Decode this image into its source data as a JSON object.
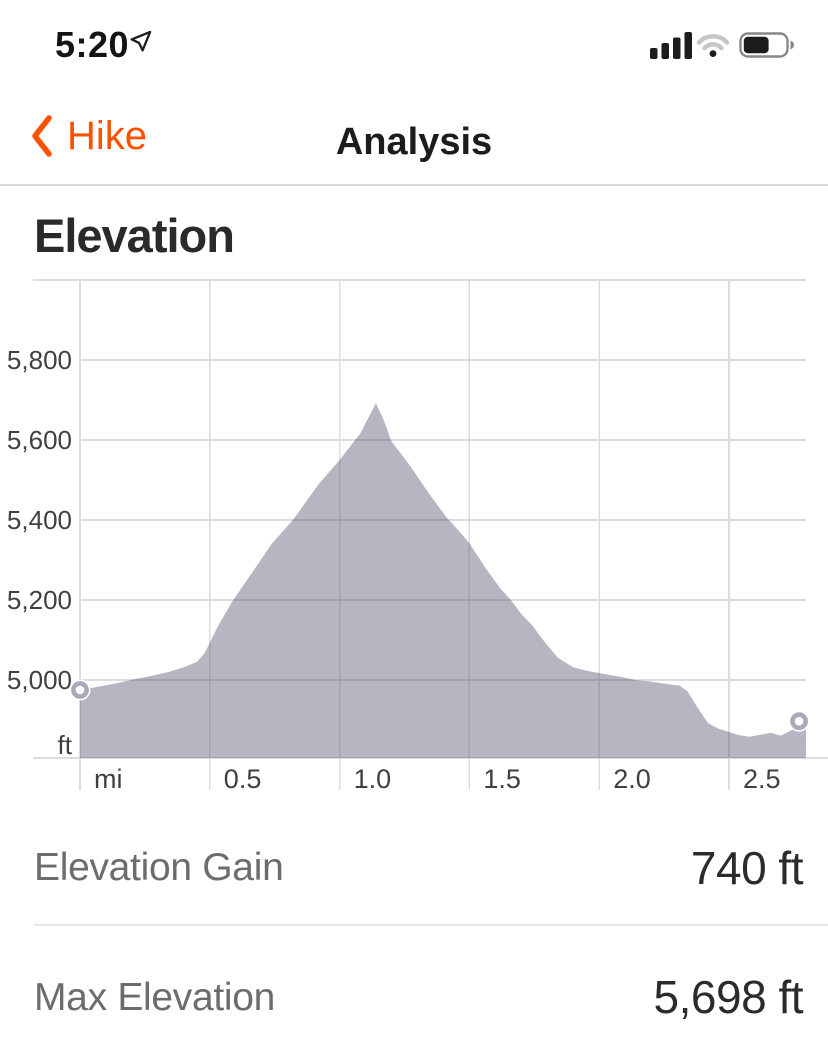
{
  "status_bar": {
    "time": "5:20",
    "cellular_bars": 4,
    "wifi_strength_dimmed_arcs": true,
    "battery_level": 0.62
  },
  "nav": {
    "back_label": "Hike",
    "title": "Analysis"
  },
  "section_title": "Elevation",
  "chart_data": {
    "type": "area",
    "title": "Elevation",
    "x_unit": "mi",
    "y_unit": "ft",
    "x_range_mi": [
      0,
      2.8
    ],
    "y_range_ft": [
      4800,
      6000
    ],
    "grid": true,
    "x_ticks": {
      "values": [
        0,
        0.5,
        1.0,
        1.5,
        2.0,
        2.5
      ],
      "labels": [
        "mi",
        "0.5",
        "1.0",
        "1.5",
        "2.0",
        "2.5"
      ]
    },
    "y_ticks": {
      "values": [
        5000,
        5200,
        5400,
        5600,
        5800
      ],
      "labels": [
        "5,000",
        "5,200",
        "5,400",
        "5,600",
        "5,800"
      ]
    },
    "gridlines_y_ft": [
      5000,
      5200,
      5400,
      5600,
      5800,
      6000
    ],
    "start_point_mi_ft": [
      0,
      4975
    ],
    "end_point_mi_ft": [
      2.77,
      4897
    ],
    "profile_points_mi_ft": [
      [
        0.0,
        4975
      ],
      [
        0.07,
        4983
      ],
      [
        0.14,
        4992
      ],
      [
        0.21,
        5002
      ],
      [
        0.28,
        5011
      ],
      [
        0.34,
        5020
      ],
      [
        0.4,
        5032
      ],
      [
        0.45,
        5045
      ],
      [
        0.48,
        5067
      ],
      [
        0.53,
        5133
      ],
      [
        0.59,
        5200
      ],
      [
        0.67,
        5275
      ],
      [
        0.74,
        5342
      ],
      [
        0.82,
        5400
      ],
      [
        0.92,
        5490
      ],
      [
        1.0,
        5550
      ],
      [
        1.08,
        5617
      ],
      [
        1.14,
        5692
      ],
      [
        1.165,
        5658
      ],
      [
        1.2,
        5597
      ],
      [
        1.27,
        5537
      ],
      [
        1.34,
        5470
      ],
      [
        1.41,
        5408
      ],
      [
        1.47,
        5365
      ],
      [
        1.5,
        5342
      ],
      [
        1.56,
        5282
      ],
      [
        1.62,
        5228
      ],
      [
        1.66,
        5200
      ],
      [
        1.7,
        5165
      ],
      [
        1.74,
        5138
      ],
      [
        1.79,
        5095
      ],
      [
        1.84,
        5056
      ],
      [
        1.9,
        5032
      ],
      [
        1.96,
        5022
      ],
      [
        2.02,
        5015
      ],
      [
        2.08,
        5008
      ],
      [
        2.14,
        5000
      ],
      [
        2.2,
        4996
      ],
      [
        2.26,
        4990
      ],
      [
        2.31,
        4986
      ],
      [
        2.34,
        4972
      ],
      [
        2.38,
        4930
      ],
      [
        2.42,
        4892
      ],
      [
        2.46,
        4878
      ],
      [
        2.5,
        4870
      ],
      [
        2.54,
        4862
      ],
      [
        2.58,
        4858
      ],
      [
        2.62,
        4863
      ],
      [
        2.66,
        4868
      ],
      [
        2.7,
        4861
      ],
      [
        2.74,
        4874
      ],
      [
        2.78,
        4896
      ],
      [
        2.797,
        4903
      ]
    ]
  },
  "stats": [
    {
      "label": "Elevation Gain",
      "value": "740 ft"
    },
    {
      "label": "Max Elevation",
      "value": "5,698 ft"
    }
  ],
  "colors": {
    "accent": "#FC5200",
    "area_fill": "rgba(63,63,94,0.38)",
    "area_fill_flat": "#b6b6c4",
    "gridline": "#dcdce1",
    "marker_ring": "#a9a9bb",
    "tick_text": "#3f3f44",
    "icon_black": "#1c1c1e",
    "icon_gray": "#c6c6c9",
    "battery_outline": "#87878b"
  }
}
